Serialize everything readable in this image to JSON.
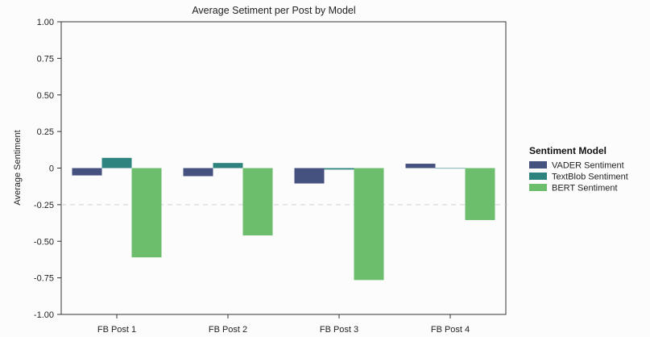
{
  "chart_data": {
    "type": "bar",
    "title": "Average Setiment per Post by Model",
    "xlabel": "",
    "ylabel": "Average Sentiment",
    "ylim": [
      -1.0,
      1.0
    ],
    "yticks": [
      "1.00",
      "0.75",
      "0.50",
      "0.25",
      "0",
      "-0.25",
      "-0.50",
      "-0.75",
      "-1.00"
    ],
    "ytick_values": [
      1.0,
      0.75,
      0.5,
      0.25,
      0,
      -0.25,
      -0.5,
      -0.75,
      -1.0
    ],
    "categories": [
      "FB Post 1",
      "FB Post 2",
      "FB Post 3",
      "FB Post 4"
    ],
    "series": [
      {
        "name": "VADER Sentiment",
        "color": "#45517e",
        "values": [
          -0.05,
          -0.055,
          -0.105,
          0.03
        ]
      },
      {
        "name": "TextBlob Sentiment",
        "color": "#2e837e",
        "values": [
          0.07,
          0.035,
          -0.01,
          0.0
        ]
      },
      {
        "name": "BERT Sentiment",
        "color": "#6cbd6c",
        "values": [
          -0.61,
          -0.46,
          -0.765,
          -0.355
        ]
      }
    ],
    "reference_line": {
      "value": -0.25,
      "style": "dashed",
      "color": "#cfcfcf"
    },
    "legend": {
      "title": "Sentiment Model",
      "placement": "right"
    },
    "grid": false
  }
}
